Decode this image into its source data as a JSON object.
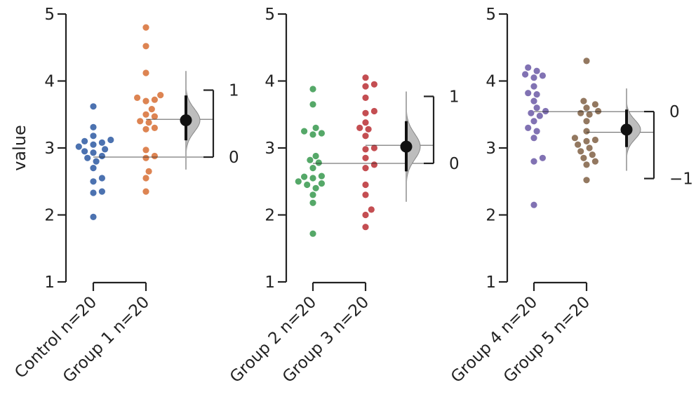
{
  "chart_data": {
    "type": "scatter",
    "ylabel": "value",
    "ylim": [
      1,
      5
    ],
    "yticks": [
      1,
      2,
      3,
      4,
      5
    ],
    "panels": [
      {
        "groups": [
          {
            "name": "Control n=20",
            "color": "#4c72b0",
            "values": [
              3.62,
              3.31,
              3.18,
              3.12,
              3.1,
              3.08,
              3.05,
              3.02,
              2.98,
              2.95,
              2.93,
              2.88,
              2.85,
              2.8,
              2.7,
              2.55,
              2.5,
              2.35,
              2.33,
              1.97
            ]
          },
          {
            "name": "Group 1 n=20",
            "color": "#dd8452",
            "values": [
              4.8,
              4.52,
              4.12,
              3.79,
              3.75,
              3.72,
              3.7,
              3.58,
              3.5,
              3.47,
              3.4,
              3.38,
              3.3,
              3.28,
              2.97,
              2.88,
              2.85,
              2.65,
              2.55,
              2.35
            ]
          }
        ],
        "diff": {
          "mean": 0.55,
          "ci": [
            0.25,
            0.92
          ]
        },
        "diff_axis": {
          "min": 0,
          "max": 1,
          "ticks": [
            0,
            1
          ]
        }
      },
      {
        "groups": [
          {
            "name": "Group 2 n=20",
            "color": "#55a868",
            "values": [
              3.88,
              3.65,
              3.3,
              3.25,
              3.22,
              3.2,
              2.88,
              2.82,
              2.78,
              2.7,
              2.58,
              2.57,
              2.55,
              2.5,
              2.47,
              2.45,
              2.4,
              2.3,
              2.18,
              1.72
            ]
          },
          {
            "name": "Group 3 n=20",
            "color": "#c44e52",
            "values": [
              4.05,
              3.95,
              3.92,
              3.75,
              3.55,
              3.52,
              3.38,
              3.3,
              3.28,
              3.18,
              3.0,
              2.98,
              2.85,
              2.75,
              2.7,
              2.45,
              2.3,
              2.08,
              2.0,
              1.82
            ]
          }
        ],
        "diff": {
          "mean": 0.25,
          "ci": [
            -0.12,
            0.63
          ]
        },
        "diff_axis": {
          "min": 0,
          "max": 1,
          "ticks": [
            0,
            1
          ]
        }
      },
      {
        "groups": [
          {
            "name": "Group 4 n=20",
            "color": "#8172b3",
            "values": [
              4.2,
              4.15,
              4.1,
              4.08,
              4.05,
              3.92,
              3.82,
              3.8,
              3.7,
              3.55,
              3.52,
              3.48,
              3.4,
              3.3,
              3.25,
              3.15,
              2.85,
              2.8,
              2.15,
              3.6
            ]
          },
          {
            "name": "Group 5 n=20",
            "color": "#937860",
            "values": [
              4.3,
              3.7,
              3.65,
              3.6,
              3.55,
              3.52,
              3.5,
              3.4,
              3.25,
              3.15,
              3.12,
              3.1,
              3.05,
              3.0,
              2.95,
              2.9,
              2.85,
              2.8,
              2.75,
              2.52
            ]
          }
        ],
        "diff": {
          "mean": -0.27,
          "ci": [
            -0.53,
            0.03
          ]
        },
        "diff_axis": {
          "min": -1,
          "max": 0,
          "ticks": [
            -1,
            0
          ]
        }
      }
    ]
  }
}
